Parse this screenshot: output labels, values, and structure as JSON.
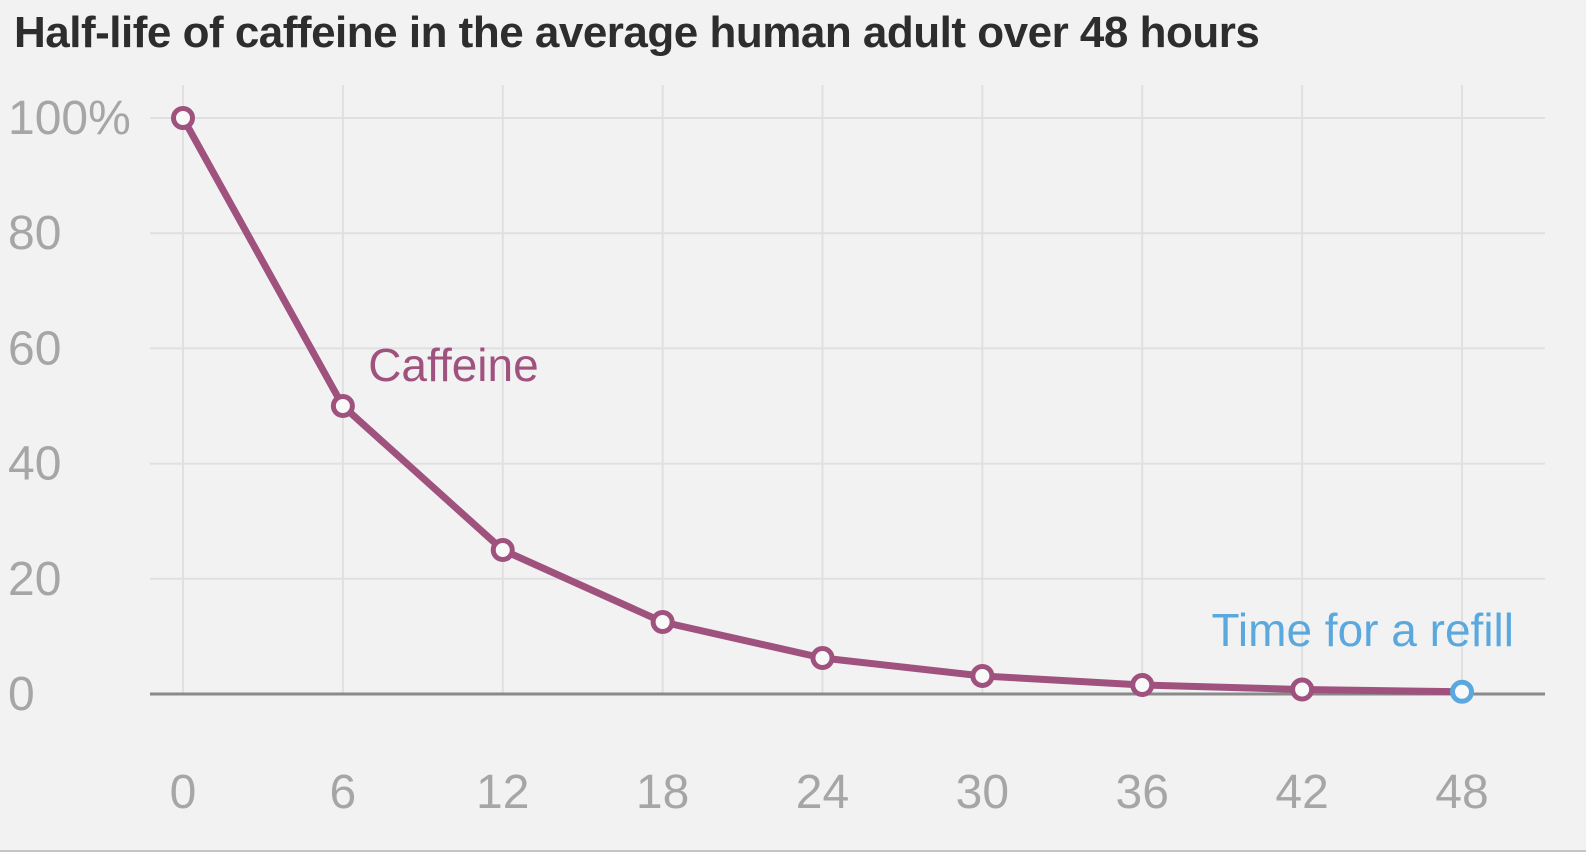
{
  "chart_data": {
    "type": "line",
    "title": "Half-life of caffeine in the average human adult over 48 hours",
    "xlabel": "",
    "ylabel": "",
    "x": [
      0,
      6,
      12,
      18,
      24,
      30,
      36,
      42,
      48
    ],
    "series": [
      {
        "name": "Caffeine",
        "color": "#a0527e",
        "values": [
          100,
          50,
          25,
          12.5,
          6.25,
          3.13,
          1.56,
          0.78,
          0.39
        ]
      }
    ],
    "xlim": [
      0,
      48
    ],
    "ylim": [
      0,
      100
    ],
    "grid": true,
    "legend_position": "none",
    "x_ticks": [
      {
        "value": 0,
        "label": "0"
      },
      {
        "value": 6,
        "label": "6"
      },
      {
        "value": 12,
        "label": "12"
      },
      {
        "value": 18,
        "label": "18"
      },
      {
        "value": 24,
        "label": "24"
      },
      {
        "value": 30,
        "label": "30"
      },
      {
        "value": 36,
        "label": "36"
      },
      {
        "value": 42,
        "label": "42"
      },
      {
        "value": 48,
        "label": "48"
      }
    ],
    "y_ticks": [
      {
        "value": 0,
        "label": "0"
      },
      {
        "value": 20,
        "label": "20"
      },
      {
        "value": 40,
        "label": "40"
      },
      {
        "value": 60,
        "label": "60"
      },
      {
        "value": 80,
        "label": "80"
      },
      {
        "value": 100,
        "label": "100%"
      }
    ],
    "annotations": [
      {
        "name": "caffeine-series-label",
        "text": "Caffeine",
        "x": 6.95,
        "y": 54.3,
        "color": "#a0527e"
      },
      {
        "name": "refill-annotation-label",
        "text": "Time for a refill",
        "x": 38.6,
        "y": 8.3,
        "color": "#5ba8de"
      }
    ],
    "colors": {
      "line": "#a0527e",
      "refill": "#5ba8de",
      "background": "#f2f2f2",
      "grid": "#e0e0e0",
      "axis": "#8a8a8a",
      "tick_label": "#a6a6a6",
      "marker_fill": "#f9f9f9",
      "title": "#2d2d2d"
    }
  }
}
